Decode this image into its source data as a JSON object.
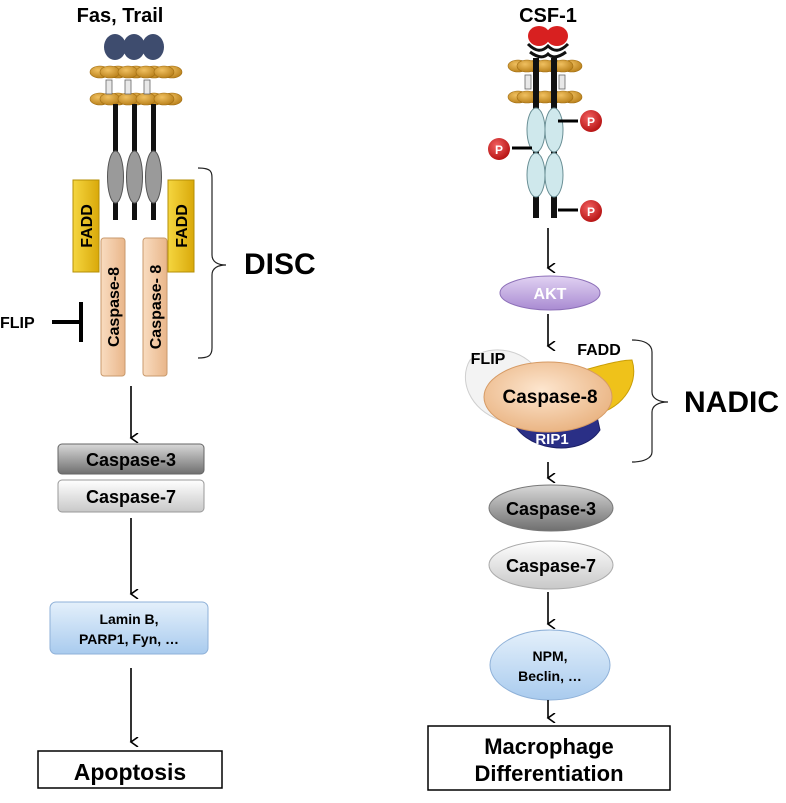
{
  "left": {
    "ligand_label": "Fas, Trail",
    "fadd_label": "FADD",
    "caspase8_label_a": "Caspase-8",
    "caspase8_label_b": "Caspase- 8",
    "disc_label": "DISC",
    "flip_label": "FLIP",
    "caspase3_label": "Caspase-3",
    "caspase7_label": "Caspase-7",
    "substrates_line1": "Lamin B,",
    "substrates_line2": "PARP1, Fyn, …",
    "outcome_label": "Apoptosis"
  },
  "right": {
    "ligand_label": "CSF-1",
    "phospho_label": "P",
    "akt_label": "AKT",
    "flip_label": "FLIP",
    "fadd_label": "FADD",
    "caspase8_label": "Caspase-8",
    "rip1_label": "RIP1",
    "nadic_label": "NADIC",
    "caspase3_label": "Caspase-3",
    "caspase7_label": "Caspase-7",
    "substrates_line1": "NPM,",
    "substrates_line2": "Beclin, …",
    "outcome_line1": "Macrophage",
    "outcome_line2": "Differentiation"
  },
  "colors": {
    "ligand_navy": "#3a4a6b",
    "ligand_red": "#d42020",
    "membrane_orange": "#d8a030",
    "fadd_yellow": "#ecc21a",
    "caspase8_peach": "#f2c9a0",
    "akt_purple": "#b99fd8",
    "rip1_navy": "#2a2f86",
    "receptor_gray": "#9a9a9a",
    "receptor_lightblue": "#cfe8ec",
    "substrate_blue": "#bcd8f0"
  }
}
